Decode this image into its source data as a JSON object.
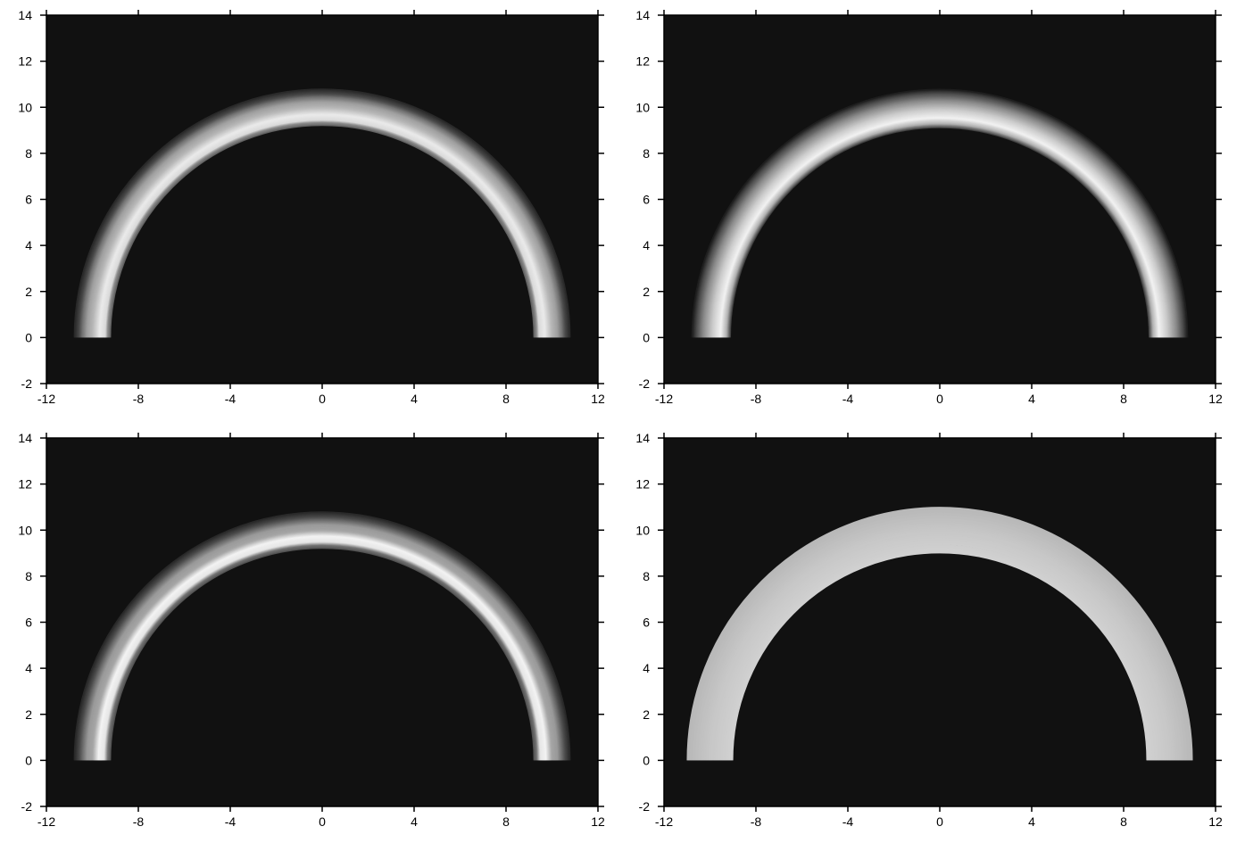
{
  "chart_data": [
    {
      "type": "heatmap",
      "panel": "top-left",
      "title": "",
      "xlabel": "",
      "ylabel": "",
      "xlim": [
        -12,
        12
      ],
      "ylim": [
        -2,
        14
      ],
      "xticks": [
        "-12",
        "-8",
        "-4",
        "0",
        "4",
        "8",
        "12"
      ],
      "yticks": [
        "-2",
        "0",
        "2",
        "4",
        "6",
        "8",
        "10",
        "12",
        "14"
      ],
      "background": "#111111",
      "arch": {
        "center": [
          0,
          0
        ],
        "inner_radius": 9.2,
        "outer_radius": 10.8,
        "y_min": 0,
        "profile": [
          {
            "r": 9.2,
            "level": 0.35
          },
          {
            "r": 9.35,
            "level": 0.55
          },
          {
            "r": 9.45,
            "level": 0.85
          },
          {
            "r": 9.7,
            "level": 0.92
          },
          {
            "r": 10.0,
            "level": 0.72
          },
          {
            "r": 10.25,
            "level": 0.62
          },
          {
            "r": 10.45,
            "level": 0.45
          },
          {
            "r": 10.6,
            "level": 0.28
          },
          {
            "r": 10.8,
            "level": 0.15
          }
        ]
      }
    },
    {
      "type": "heatmap",
      "panel": "top-right",
      "title": "",
      "xlabel": "",
      "ylabel": "",
      "xlim": [
        -12,
        12
      ],
      "ylim": [
        -2,
        14
      ],
      "xticks": [
        "-12",
        "-8",
        "-4",
        "0",
        "4",
        "8",
        "12"
      ],
      "yticks": [
        "-2",
        "0",
        "2",
        "4",
        "6",
        "8",
        "10",
        "12",
        "14"
      ],
      "background": "#111111",
      "arch": {
        "center": [
          0,
          0
        ],
        "inner_radius": 9.1,
        "outer_radius": 10.8,
        "y_min": 0,
        "profile": [
          {
            "r": 9.1,
            "level": 0.2
          },
          {
            "r": 9.3,
            "level": 0.7
          },
          {
            "r": 9.55,
            "level": 0.95
          },
          {
            "r": 9.9,
            "level": 0.8
          },
          {
            "r": 10.3,
            "level": 0.55
          },
          {
            "r": 10.6,
            "level": 0.3
          },
          {
            "r": 10.8,
            "level": 0.1
          }
        ]
      }
    },
    {
      "type": "heatmap",
      "panel": "bottom-left",
      "title": "",
      "xlabel": "",
      "ylabel": "",
      "xlim": [
        -12,
        12
      ],
      "ylim": [
        -2,
        14
      ],
      "xticks": [
        "-12",
        "-8",
        "-4",
        "0",
        "4",
        "8",
        "12"
      ],
      "yticks": [
        "-2",
        "0",
        "2",
        "4",
        "6",
        "8",
        "10",
        "12",
        "14"
      ],
      "background": "#111111",
      "arch": {
        "center": [
          0,
          0
        ],
        "inner_radius": 9.2,
        "outer_radius": 10.8,
        "y_min": 0,
        "profile": [
          {
            "r": 9.2,
            "level": 0.3
          },
          {
            "r": 9.35,
            "level": 0.45
          },
          {
            "r": 9.5,
            "level": 0.9
          },
          {
            "r": 9.75,
            "level": 0.95
          },
          {
            "r": 10.0,
            "level": 0.65
          },
          {
            "r": 10.25,
            "level": 0.6
          },
          {
            "r": 10.45,
            "level": 0.42
          },
          {
            "r": 10.6,
            "level": 0.28
          },
          {
            "r": 10.8,
            "level": 0.15
          }
        ]
      }
    },
    {
      "type": "heatmap",
      "panel": "bottom-right",
      "title": "",
      "xlabel": "",
      "ylabel": "",
      "xlim": [
        -12,
        12
      ],
      "ylim": [
        -2,
        14
      ],
      "xticks": [
        "-12",
        "-8",
        "-4",
        "0",
        "4",
        "8",
        "12"
      ],
      "yticks": [
        "-2",
        "0",
        "2",
        "4",
        "6",
        "8",
        "10",
        "12",
        "14"
      ],
      "background": "#111111",
      "arch": {
        "center": [
          0,
          0
        ],
        "inner_radius": 9.0,
        "outer_radius": 11.0,
        "y_min": 0,
        "profile": [
          {
            "r": 9.0,
            "level": 0.82
          },
          {
            "r": 10.0,
            "level": 0.78
          },
          {
            "r": 11.0,
            "level": 0.72
          }
        ]
      }
    }
  ]
}
